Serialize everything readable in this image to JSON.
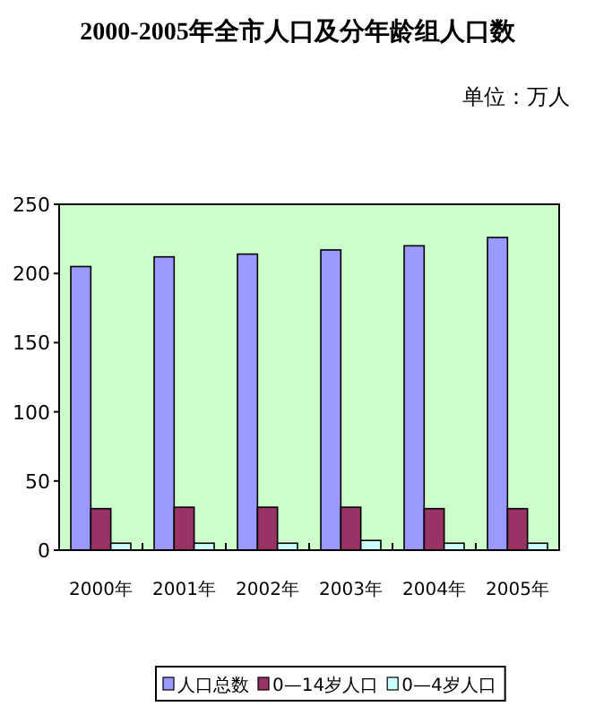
{
  "chart_data": {
    "type": "bar",
    "title": "2000-2005年全市人口及分年龄组人口数",
    "subtitle": "单位：万人",
    "categories": [
      "2000年",
      "2001年",
      "2002年",
      "2003年",
      "2004年",
      "2005年"
    ],
    "series": [
      {
        "name": "人口总数",
        "color": "#9999ff",
        "values": [
          205,
          212,
          214,
          217,
          220,
          226
        ]
      },
      {
        "name": "0—14岁人口",
        "color": "#993366",
        "values": [
          30,
          31,
          31,
          31,
          30,
          30
        ]
      },
      {
        "name": "0—4岁人口",
        "color": "#ccffff",
        "values": [
          5,
          5,
          5,
          7,
          5,
          5
        ]
      }
    ],
    "ylim": [
      0,
      250
    ],
    "yticks": [
      0,
      50,
      100,
      150,
      200,
      250
    ],
    "grid": false,
    "legend": "bottom"
  }
}
